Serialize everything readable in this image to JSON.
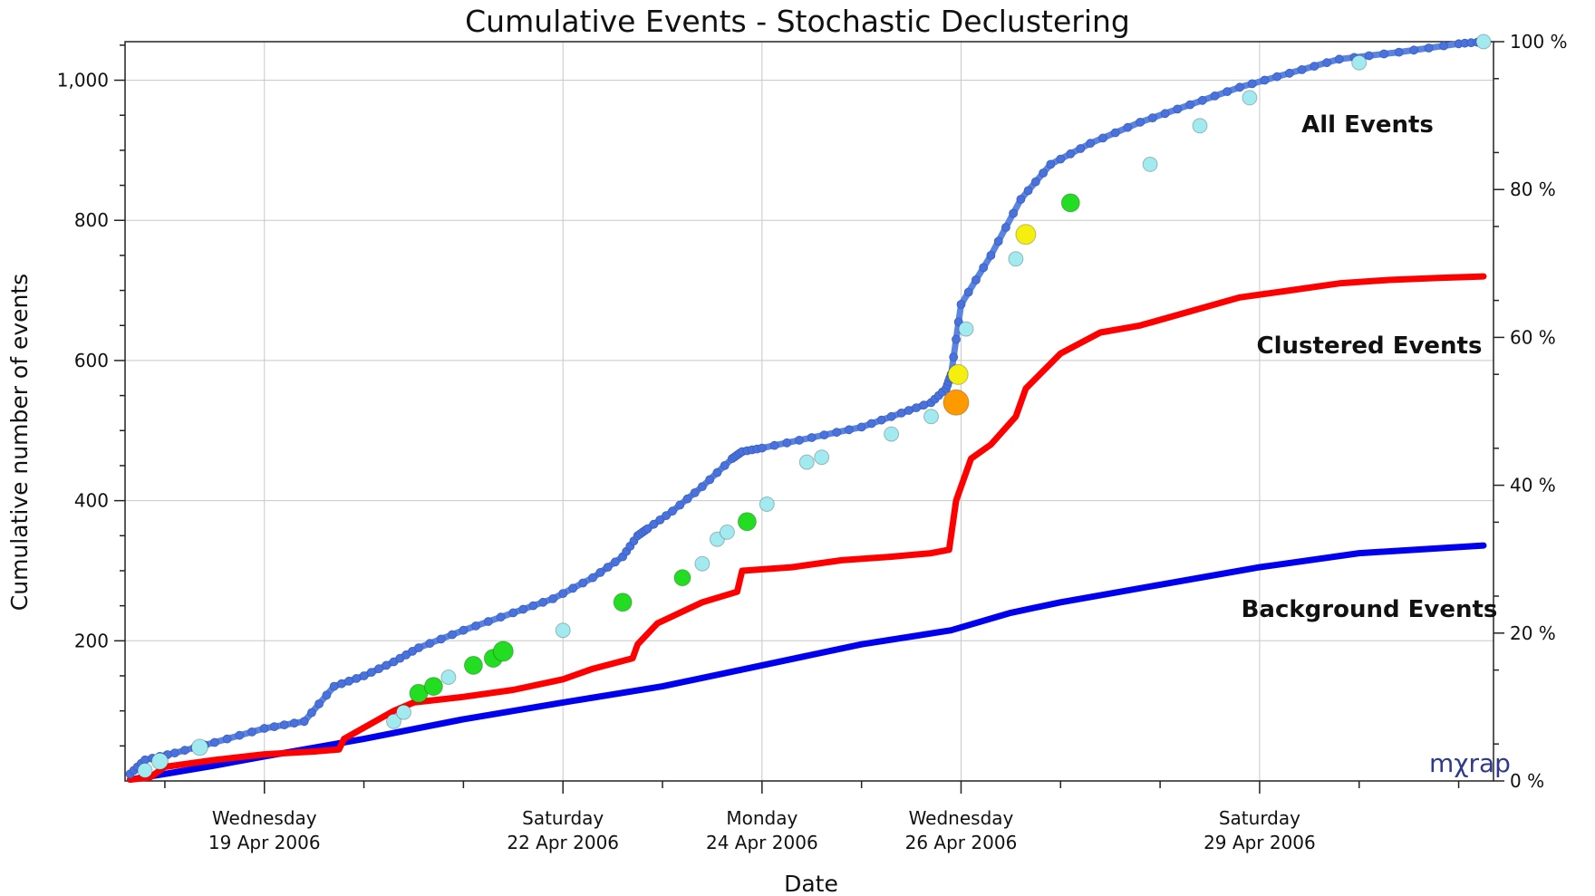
{
  "chart_data": {
    "type": "line",
    "title": "Cumulative Events - Stochastic Declustering",
    "xlabel": "Date",
    "ylabel": "Cumulative number of events",
    "x_unit": "days since 17 Apr 2006 00:00",
    "xlim": [
      0.6,
      14.35
    ],
    "ylim": [
      0,
      1055
    ],
    "y2lim": [
      0,
      100
    ],
    "grid": true,
    "x_ticks": [
      {
        "day": 2,
        "weekday": "Wednesday",
        "date": "19 Apr 2006"
      },
      {
        "day": 5,
        "weekday": "Saturday",
        "date": "22 Apr 2006"
      },
      {
        "day": 7,
        "weekday": "Monday",
        "date": "24 Apr 2006"
      },
      {
        "day": 9,
        "weekday": "Wednesday",
        "date": "26 Apr 2006"
      },
      {
        "day": 12,
        "weekday": "Saturday",
        "date": "29 Apr 2006"
      }
    ],
    "y_ticks": [
      {
        "value": 200,
        "label": "200"
      },
      {
        "value": 400,
        "label": "400"
      },
      {
        "value": 600,
        "label": "600"
      },
      {
        "value": 800,
        "label": "800"
      },
      {
        "value": 1000,
        "label": "1,000"
      }
    ],
    "y2_ticks": [
      {
        "value": 0,
        "label": "0 %"
      },
      {
        "value": 20,
        "label": "20 %"
      },
      {
        "value": 40,
        "label": "40 %"
      },
      {
        "value": 60,
        "label": "60 %"
      },
      {
        "value": 80,
        "label": "80 %"
      },
      {
        "value": 100,
        "label": "100 %"
      }
    ],
    "series": [
      {
        "name": "All Events",
        "color": "#5b83e0",
        "x": [
          0.65,
          0.8,
          1.1,
          1.5,
          2.0,
          2.4,
          2.7,
          3.0,
          3.3,
          3.55,
          4.0,
          4.5,
          4.9,
          5.3,
          5.6,
          5.75,
          5.85,
          6.1,
          6.4,
          6.7,
          6.8,
          7.0,
          7.5,
          8.0,
          8.4,
          8.7,
          8.85,
          8.9,
          9.0,
          9.3,
          9.6,
          9.9,
          10.3,
          10.8,
          11.3,
          11.8,
          12.3,
          12.8,
          13.4,
          14.0,
          14.25
        ],
        "y": [
          10,
          30,
          40,
          55,
          75,
          85,
          135,
          150,
          170,
          190,
          215,
          240,
          260,
          290,
          320,
          350,
          360,
          385,
          420,
          460,
          470,
          475,
          490,
          505,
          525,
          540,
          560,
          580,
          680,
          750,
          830,
          880,
          910,
          940,
          965,
          990,
          1010,
          1030,
          1040,
          1052,
          1055
        ]
      },
      {
        "name": "Clustered Events",
        "color": "#ff0000",
        "x": [
          0.65,
          0.85,
          1.0,
          1.5,
          2.0,
          2.5,
          2.75,
          2.8,
          3.3,
          3.5,
          4.0,
          4.5,
          5.0,
          5.3,
          5.7,
          5.75,
          5.95,
          6.4,
          6.75,
          6.8,
          7.3,
          7.8,
          8.3,
          8.7,
          8.88,
          8.95,
          9.1,
          9.3,
          9.55,
          9.65,
          10.0,
          10.4,
          10.8,
          11.3,
          11.8,
          12.3,
          12.8,
          13.3,
          13.8,
          14.25
        ],
        "y": [
          2,
          5,
          20,
          30,
          38,
          42,
          45,
          60,
          100,
          112,
          120,
          130,
          145,
          160,
          175,
          195,
          225,
          255,
          270,
          300,
          305,
          315,
          320,
          325,
          330,
          400,
          460,
          480,
          520,
          560,
          610,
          640,
          650,
          670,
          690,
          700,
          710,
          715,
          718,
          720
        ]
      },
      {
        "name": "Background Events",
        "color": "#0000ee",
        "x": [
          0.65,
          1.0,
          1.5,
          2.0,
          3.0,
          4.0,
          5.0,
          6.0,
          7.0,
          8.0,
          8.9,
          9.5,
          10.0,
          11.0,
          12.0,
          13.0,
          14.25
        ],
        "y": [
          2,
          10,
          22,
          35,
          60,
          88,
          112,
          135,
          165,
          195,
          215,
          240,
          255,
          280,
          305,
          325,
          336
        ]
      }
    ],
    "markers": [
      {
        "x": 0.8,
        "y": 15,
        "size": 8,
        "color": "#a0eaf0"
      },
      {
        "x": 0.95,
        "y": 28,
        "size": 9,
        "color": "#a0eaf0"
      },
      {
        "x": 1.35,
        "y": 48,
        "size": 9,
        "color": "#a0eaf0"
      },
      {
        "x": 3.3,
        "y": 85,
        "size": 8,
        "color": "#a0eaf0"
      },
      {
        "x": 3.4,
        "y": 98,
        "size": 8,
        "color": "#a0eaf0"
      },
      {
        "x": 3.55,
        "y": 125,
        "size": 10,
        "color": "#22dd22"
      },
      {
        "x": 3.7,
        "y": 135,
        "size": 10,
        "color": "#22dd22"
      },
      {
        "x": 3.85,
        "y": 148,
        "size": 8,
        "color": "#a0eaf0"
      },
      {
        "x": 4.1,
        "y": 165,
        "size": 10,
        "color": "#22dd22"
      },
      {
        "x": 4.3,
        "y": 175,
        "size": 10,
        "color": "#22dd22"
      },
      {
        "x": 4.4,
        "y": 185,
        "size": 11,
        "color": "#22dd22"
      },
      {
        "x": 5.0,
        "y": 215,
        "size": 8,
        "color": "#a0eaf0"
      },
      {
        "x": 5.6,
        "y": 255,
        "size": 10,
        "color": "#22dd22"
      },
      {
        "x": 6.2,
        "y": 290,
        "size": 9,
        "color": "#22dd22"
      },
      {
        "x": 6.4,
        "y": 310,
        "size": 8,
        "color": "#a0eaf0"
      },
      {
        "x": 6.55,
        "y": 345,
        "size": 8,
        "color": "#a0eaf0"
      },
      {
        "x": 6.65,
        "y": 355,
        "size": 8,
        "color": "#a0eaf0"
      },
      {
        "x": 6.85,
        "y": 370,
        "size": 10,
        "color": "#22dd22"
      },
      {
        "x": 7.05,
        "y": 395,
        "size": 8,
        "color": "#a0eaf0"
      },
      {
        "x": 7.45,
        "y": 455,
        "size": 8,
        "color": "#a0eaf0"
      },
      {
        "x": 7.6,
        "y": 462,
        "size": 8,
        "color": "#a0eaf0"
      },
      {
        "x": 8.3,
        "y": 495,
        "size": 8,
        "color": "#a0eaf0"
      },
      {
        "x": 8.7,
        "y": 520,
        "size": 8,
        "color": "#a0eaf0"
      },
      {
        "x": 8.95,
        "y": 540,
        "size": 14,
        "color": "#ff9900"
      },
      {
        "x": 8.97,
        "y": 580,
        "size": 11,
        "color": "#f5ef10"
      },
      {
        "x": 9.05,
        "y": 645,
        "size": 8,
        "color": "#a0eaf0"
      },
      {
        "x": 9.55,
        "y": 745,
        "size": 8,
        "color": "#a0eaf0"
      },
      {
        "x": 9.65,
        "y": 780,
        "size": 11,
        "color": "#f5ef10"
      },
      {
        "x": 10.1,
        "y": 825,
        "size": 10,
        "color": "#22dd22"
      },
      {
        "x": 10.9,
        "y": 880,
        "size": 8,
        "color": "#a0eaf0"
      },
      {
        "x": 11.4,
        "y": 935,
        "size": 8,
        "color": "#a0eaf0"
      },
      {
        "x": 11.9,
        "y": 975,
        "size": 8,
        "color": "#a0eaf0"
      },
      {
        "x": 13.0,
        "y": 1025,
        "size": 8,
        "color": "#a0eaf0"
      },
      {
        "x": 14.25,
        "y": 1055,
        "size": 8,
        "color": "#a0eaf0"
      }
    ],
    "labels": {
      "all": "All Events",
      "clustered": "Clustered Events",
      "background": "Background Events"
    },
    "logo": "mχrap"
  }
}
